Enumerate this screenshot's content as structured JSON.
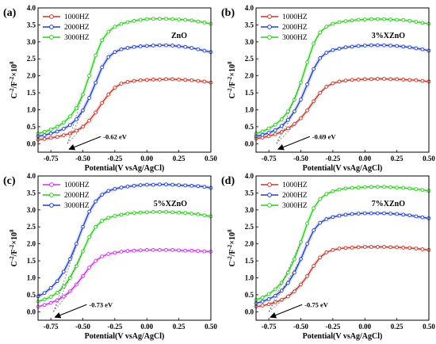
{
  "chart_data": [
    {
      "type": "line",
      "panel_label": "(a)",
      "sample_label": "ZnO",
      "xlabel": "Potential(V vsAg/AgCl)",
      "ylabel_main": "C",
      "ylabel_sup1": "-2",
      "ylabel_mid": "/F",
      "ylabel_sup2": "-2",
      "ylabel_tail": "×10",
      "ylabel_sup3": "8",
      "xlim": [
        -0.85,
        0.5
      ],
      "ylim": [
        -0.25,
        4.0
      ],
      "xticks": [
        "-0.75",
        "-0.50",
        "-0.25",
        "0.00",
        "0.25",
        "0.50"
      ],
      "yticks": [
        "0.0",
        "0.5",
        "1.0",
        "1.5",
        "2.0",
        "2.5",
        "3.0",
        "3.5",
        "4.0"
      ],
      "legend_position": "top-left",
      "annotation": "-0.62 eV",
      "intercept_x": -0.62,
      "series": [
        {
          "name": "1000HZ",
          "color": "#c0392b",
          "x": [
            -0.85,
            -0.8,
            -0.75,
            -0.7,
            -0.65,
            -0.6,
            -0.55,
            -0.5,
            -0.45,
            -0.4,
            -0.35,
            -0.3,
            -0.25,
            -0.2,
            -0.15,
            -0.1,
            -0.05,
            0,
            0.05,
            0.1,
            0.15,
            0.2,
            0.25,
            0.3,
            0.35,
            0.4,
            0.45,
            0.5
          ],
          "y": [
            0.12,
            0.14,
            0.17,
            0.2,
            0.25,
            0.3,
            0.38,
            0.5,
            0.68,
            0.92,
            1.2,
            1.45,
            1.65,
            1.77,
            1.82,
            1.85,
            1.87,
            1.88,
            1.89,
            1.89,
            1.9,
            1.9,
            1.89,
            1.88,
            1.87,
            1.85,
            1.83,
            1.8
          ]
        },
        {
          "name": "2000HZ",
          "color": "#1f3fc4",
          "x": [
            -0.85,
            -0.8,
            -0.75,
            -0.7,
            -0.65,
            -0.6,
            -0.55,
            -0.5,
            -0.45,
            -0.4,
            -0.35,
            -0.3,
            -0.25,
            -0.2,
            -0.15,
            -0.1,
            -0.05,
            0,
            0.05,
            0.1,
            0.15,
            0.2,
            0.25,
            0.3,
            0.35,
            0.4,
            0.45,
            0.5
          ],
          "y": [
            0.22,
            0.25,
            0.3,
            0.36,
            0.44,
            0.55,
            0.72,
            0.98,
            1.35,
            1.8,
            2.25,
            2.55,
            2.7,
            2.78,
            2.82,
            2.85,
            2.87,
            2.88,
            2.89,
            2.9,
            2.9,
            2.89,
            2.87,
            2.85,
            2.82,
            2.78,
            2.74,
            2.7
          ]
        },
        {
          "name": "3000HZ",
          "color": "#2ecc1f",
          "x": [
            -0.85,
            -0.8,
            -0.75,
            -0.7,
            -0.65,
            -0.6,
            -0.55,
            -0.5,
            -0.45,
            -0.4,
            -0.35,
            -0.3,
            -0.25,
            -0.2,
            -0.15,
            -0.1,
            -0.05,
            0,
            0.05,
            0.1,
            0.15,
            0.2,
            0.25,
            0.3,
            0.35,
            0.4,
            0.45,
            0.5
          ],
          "y": [
            0.3,
            0.35,
            0.42,
            0.5,
            0.62,
            0.8,
            1.05,
            1.45,
            2.0,
            2.6,
            3.05,
            3.3,
            3.45,
            3.53,
            3.58,
            3.62,
            3.65,
            3.67,
            3.68,
            3.68,
            3.68,
            3.67,
            3.66,
            3.65,
            3.63,
            3.6,
            3.57,
            3.53
          ]
        }
      ]
    },
    {
      "type": "line",
      "panel_label": "(b)",
      "sample_label": "3%XZnO",
      "xlabel": "Potential(V vsAg/AgCl)",
      "ylabel_main": "C",
      "ylabel_sup1": "-2",
      "ylabel_mid": "/F",
      "ylabel_sup2": "-2",
      "ylabel_tail": "×10",
      "ylabel_sup3": "8",
      "xlim": [
        -0.85,
        0.5
      ],
      "ylim": [
        -0.25,
        4.0
      ],
      "xticks": [
        "-0.75",
        "-0.50",
        "-0.25",
        "0.00",
        "0.25",
        "0.50"
      ],
      "yticks": [
        "0.0",
        "0.5",
        "1.0",
        "1.5",
        "2.0",
        "2.5",
        "3.0",
        "3.5",
        "4.0"
      ],
      "legend_position": "top-left",
      "annotation": "-0.69 eV",
      "intercept_x": -0.69,
      "series": [
        {
          "name": "1000HZ",
          "color": "#c0392b",
          "x": [
            -0.85,
            -0.8,
            -0.75,
            -0.7,
            -0.65,
            -0.6,
            -0.55,
            -0.5,
            -0.45,
            -0.4,
            -0.35,
            -0.3,
            -0.25,
            -0.2,
            -0.15,
            -0.1,
            -0.05,
            0,
            0.05,
            0.1,
            0.15,
            0.2,
            0.25,
            0.3,
            0.35,
            0.4,
            0.45,
            0.5
          ],
          "y": [
            0.15,
            0.18,
            0.22,
            0.28,
            0.35,
            0.45,
            0.58,
            0.75,
            0.98,
            1.25,
            1.5,
            1.68,
            1.78,
            1.83,
            1.86,
            1.88,
            1.89,
            1.9,
            1.9,
            1.91,
            1.91,
            1.9,
            1.9,
            1.89,
            1.88,
            1.87,
            1.85,
            1.83
          ]
        },
        {
          "name": "2000HZ",
          "color": "#1f3fc4",
          "x": [
            -0.85,
            -0.8,
            -0.75,
            -0.7,
            -0.65,
            -0.6,
            -0.55,
            -0.5,
            -0.45,
            -0.4,
            -0.35,
            -0.3,
            -0.25,
            -0.2,
            -0.15,
            -0.1,
            -0.05,
            0,
            0.05,
            0.1,
            0.15,
            0.2,
            0.25,
            0.3,
            0.35,
            0.4,
            0.45,
            0.5
          ],
          "y": [
            0.22,
            0.26,
            0.32,
            0.4,
            0.52,
            0.7,
            0.95,
            1.3,
            1.75,
            2.2,
            2.52,
            2.68,
            2.76,
            2.8,
            2.84,
            2.86,
            2.88,
            2.89,
            2.9,
            2.9,
            2.9,
            2.89,
            2.88,
            2.86,
            2.84,
            2.81,
            2.78,
            2.74
          ]
        },
        {
          "name": "3000HZ",
          "color": "#2ecc1f",
          "x": [
            -0.85,
            -0.8,
            -0.75,
            -0.7,
            -0.65,
            -0.6,
            -0.55,
            -0.5,
            -0.45,
            -0.4,
            -0.35,
            -0.3,
            -0.25,
            -0.2,
            -0.15,
            -0.1,
            -0.05,
            0,
            0.05,
            0.1,
            0.15,
            0.2,
            0.25,
            0.3,
            0.35,
            0.4,
            0.45,
            0.5
          ],
          "y": [
            0.3,
            0.36,
            0.45,
            0.56,
            0.72,
            0.95,
            1.3,
            1.8,
            2.4,
            2.95,
            3.28,
            3.45,
            3.53,
            3.58,
            3.61,
            3.63,
            3.65,
            3.66,
            3.67,
            3.67,
            3.67,
            3.66,
            3.65,
            3.64,
            3.62,
            3.59,
            3.56,
            3.53
          ]
        }
      ]
    },
    {
      "type": "line",
      "panel_label": "(c)",
      "sample_label": "5%XZnO",
      "xlabel": "Potential(V vsAg/AgCl)",
      "ylabel_main": "C",
      "ylabel_sup1": "-2",
      "ylabel_mid": "/F",
      "ylabel_sup2": "-2",
      "ylabel_tail": "×10",
      "ylabel_sup3": "8",
      "xlim": [
        -0.85,
        0.5
      ],
      "ylim": [
        -0.25,
        4.0
      ],
      "xticks": [
        "-0.75",
        "-0.50",
        "-0.25",
        "0.00",
        "0.25",
        "0.50"
      ],
      "yticks": [
        "0.0",
        "0.5",
        "1.0",
        "1.5",
        "2.0",
        "2.5",
        "3.0",
        "3.5",
        "4.0"
      ],
      "legend_position": "top-left",
      "annotation": "-0.73 eV",
      "intercept_x": -0.73,
      "series": [
        {
          "name": "1000HZ",
          "color": "#cc33ee",
          "x": [
            -0.85,
            -0.8,
            -0.75,
            -0.7,
            -0.65,
            -0.6,
            -0.55,
            -0.5,
            -0.45,
            -0.4,
            -0.35,
            -0.3,
            -0.25,
            -0.2,
            -0.15,
            -0.1,
            -0.05,
            0,
            0.05,
            0.1,
            0.15,
            0.2,
            0.25,
            0.3,
            0.35,
            0.4,
            0.45,
            0.5
          ],
          "y": [
            0.15,
            0.2,
            0.26,
            0.34,
            0.45,
            0.6,
            0.8,
            1.05,
            1.3,
            1.5,
            1.63,
            1.7,
            1.74,
            1.77,
            1.79,
            1.8,
            1.81,
            1.82,
            1.82,
            1.82,
            1.82,
            1.82,
            1.81,
            1.8,
            1.8,
            1.79,
            1.78,
            1.77
          ]
        },
        {
          "name": "2000HZ",
          "color": "#2ecc1f",
          "x": [
            -0.85,
            -0.8,
            -0.75,
            -0.7,
            -0.65,
            -0.6,
            -0.55,
            -0.5,
            -0.45,
            -0.4,
            -0.35,
            -0.3,
            -0.25,
            -0.2,
            -0.15,
            -0.1,
            -0.05,
            0,
            0.05,
            0.1,
            0.15,
            0.2,
            0.25,
            0.3,
            0.35,
            0.4,
            0.45,
            0.5
          ],
          "y": [
            0.3,
            0.36,
            0.44,
            0.56,
            0.74,
            1.0,
            1.35,
            1.78,
            2.2,
            2.5,
            2.68,
            2.77,
            2.82,
            2.86,
            2.89,
            2.91,
            2.92,
            2.93,
            2.94,
            2.94,
            2.94,
            2.93,
            2.92,
            2.91,
            2.89,
            2.87,
            2.84,
            2.81
          ]
        },
        {
          "name": "3000HZ",
          "color": "#1f3fc4",
          "x": [
            -0.85,
            -0.8,
            -0.75,
            -0.7,
            -0.65,
            -0.6,
            -0.55,
            -0.5,
            -0.45,
            -0.4,
            -0.35,
            -0.3,
            -0.25,
            -0.2,
            -0.15,
            -0.1,
            -0.05,
            0,
            0.05,
            0.1,
            0.15,
            0.2,
            0.25,
            0.3,
            0.35,
            0.4,
            0.45,
            0.5
          ],
          "y": [
            0.45,
            0.55,
            0.7,
            0.9,
            1.18,
            1.55,
            2.0,
            2.5,
            2.95,
            3.25,
            3.45,
            3.56,
            3.62,
            3.66,
            3.69,
            3.71,
            3.73,
            3.74,
            3.74,
            3.75,
            3.75,
            3.74,
            3.73,
            3.72,
            3.71,
            3.7,
            3.68,
            3.65
          ]
        }
      ]
    },
    {
      "type": "line",
      "panel_label": "(d)",
      "sample_label": "7%XZnO",
      "xlabel": "Potential(V vsAg/AgCl)",
      "ylabel_main": "C",
      "ylabel_sup1": "-2",
      "ylabel_mid": "/F",
      "ylabel_sup2": "-2",
      "ylabel_tail": "×10",
      "ylabel_sup3": "8",
      "xlim": [
        -0.85,
        0.5
      ],
      "ylim": [
        -0.25,
        4.0
      ],
      "xticks": [
        "-0.75",
        "-0.50",
        "-0.25",
        "0.00",
        "0.25",
        "0.50"
      ],
      "yticks": [
        "0.0",
        "0.5",
        "1.0",
        "1.5",
        "2.0",
        "2.5",
        "3.0",
        "3.5",
        "4.0"
      ],
      "legend_position": "top-left",
      "annotation": "-0.75 eV",
      "intercept_x": -0.75,
      "series": [
        {
          "name": "1000HZ",
          "color": "#c0392b",
          "x": [
            -0.85,
            -0.8,
            -0.75,
            -0.7,
            -0.65,
            -0.6,
            -0.55,
            -0.5,
            -0.45,
            -0.4,
            -0.35,
            -0.3,
            -0.25,
            -0.2,
            -0.15,
            -0.1,
            -0.05,
            0,
            0.05,
            0.1,
            0.15,
            0.2,
            0.25,
            0.3,
            0.35,
            0.4,
            0.45,
            0.5
          ],
          "y": [
            0.15,
            0.18,
            0.22,
            0.28,
            0.35,
            0.45,
            0.6,
            0.8,
            1.05,
            1.35,
            1.6,
            1.75,
            1.82,
            1.86,
            1.88,
            1.89,
            1.9,
            1.91,
            1.91,
            1.91,
            1.91,
            1.9,
            1.9,
            1.89,
            1.88,
            1.86,
            1.84,
            1.82
          ]
        },
        {
          "name": "2000HZ",
          "color": "#1f3fc4",
          "x": [
            -0.85,
            -0.8,
            -0.75,
            -0.7,
            -0.65,
            -0.6,
            -0.55,
            -0.5,
            -0.45,
            -0.4,
            -0.35,
            -0.3,
            -0.25,
            -0.2,
            -0.15,
            -0.1,
            -0.05,
            0,
            0.05,
            0.1,
            0.15,
            0.2,
            0.25,
            0.3,
            0.35,
            0.4,
            0.45,
            0.5
          ],
          "y": [
            0.25,
            0.3,
            0.37,
            0.47,
            0.62,
            0.85,
            1.15,
            1.55,
            2.0,
            2.4,
            2.62,
            2.73,
            2.79,
            2.83,
            2.86,
            2.88,
            2.89,
            2.9,
            2.9,
            2.9,
            2.9,
            2.89,
            2.88,
            2.86,
            2.84,
            2.81,
            2.78,
            2.75
          ]
        },
        {
          "name": "3000HZ",
          "color": "#2ecc1f",
          "x": [
            -0.85,
            -0.8,
            -0.75,
            -0.7,
            -0.65,
            -0.6,
            -0.55,
            -0.5,
            -0.45,
            -0.4,
            -0.35,
            -0.3,
            -0.25,
            -0.2,
            -0.15,
            -0.1,
            -0.05,
            0,
            0.05,
            0.1,
            0.15,
            0.2,
            0.25,
            0.3,
            0.35,
            0.4,
            0.45,
            0.5
          ],
          "y": [
            0.35,
            0.42,
            0.52,
            0.66,
            0.86,
            1.15,
            1.55,
            2.05,
            2.6,
            3.05,
            3.32,
            3.47,
            3.55,
            3.6,
            3.63,
            3.65,
            3.66,
            3.67,
            3.68,
            3.68,
            3.68,
            3.67,
            3.66,
            3.65,
            3.63,
            3.61,
            3.59,
            3.56
          ]
        }
      ]
    }
  ]
}
